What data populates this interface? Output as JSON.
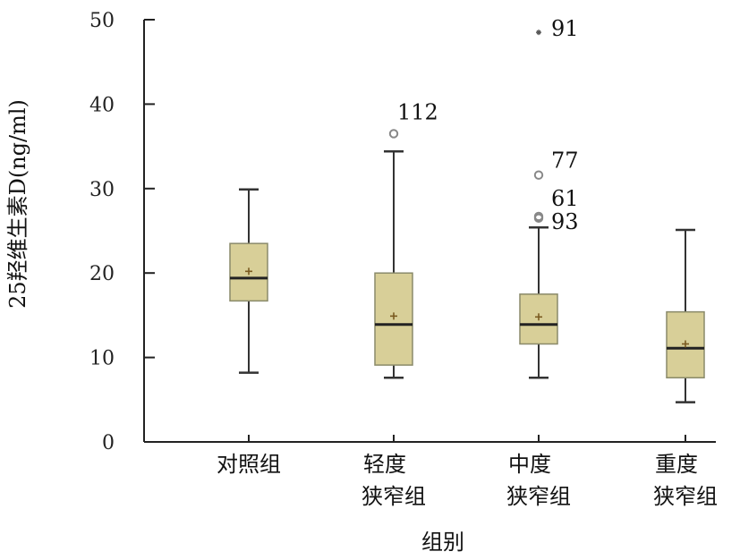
{
  "chart_data": {
    "type": "box",
    "xlabel": "组别",
    "ylabel": "25羟维生素D(ng/ml)",
    "ylim": [
      0,
      50
    ],
    "yticks": [
      0,
      10,
      20,
      30,
      40,
      50
    ],
    "grid": false,
    "colors": {
      "box_fill": "#d8cf98",
      "box_stroke": "#8a8a6a",
      "line": "#333333",
      "mean_marker": "#7a5a20"
    },
    "categories": [
      {
        "lines": [
          "对照组"
        ]
      },
      {
        "lines": [
          "轻度",
          "狭窄组"
        ]
      },
      {
        "lines": [
          "中度",
          "狭窄组"
        ]
      },
      {
        "lines": [
          "重度",
          "狭窄组"
        ]
      }
    ],
    "boxes": [
      {
        "min": 8.2,
        "q1": 16.7,
        "median": 19.4,
        "q3": 23.5,
        "max": 29.9,
        "mean": 20.2,
        "outliers": []
      },
      {
        "min": 7.6,
        "q1": 9.1,
        "median": 13.9,
        "q3": 20.0,
        "max": 34.4,
        "mean": 14.9,
        "outliers": [
          {
            "value": 36.5,
            "label": "112",
            "marker": "circle"
          }
        ]
      },
      {
        "min": 7.6,
        "q1": 11.6,
        "median": 13.9,
        "q3": 17.5,
        "max": 25.4,
        "mean": 14.8,
        "outliers": [
          {
            "value": 48.5,
            "label": "91",
            "marker": "star"
          },
          {
            "value": 31.6,
            "label": "77",
            "marker": "circle"
          },
          {
            "value": 26.7,
            "label": "61",
            "marker": "circle"
          },
          {
            "value": 26.5,
            "label": "93",
            "marker": "circle"
          }
        ]
      },
      {
        "min": 4.7,
        "q1": 7.6,
        "median": 11.1,
        "q3": 15.4,
        "max": 25.1,
        "mean": 11.6,
        "outliers": []
      }
    ]
  }
}
